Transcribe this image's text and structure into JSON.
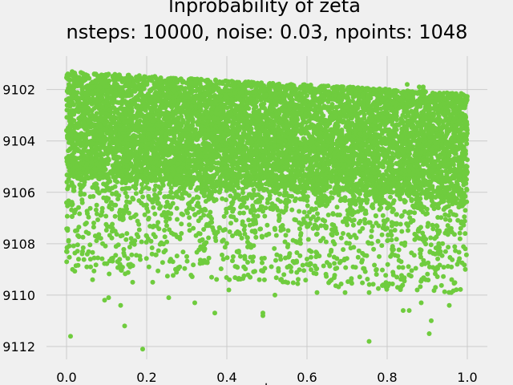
{
  "chart_data": {
    "type": "scatter",
    "title": "lnprobability of zeta",
    "subtitle": "nsteps: 10000, noise: 0.03, npoints: 1048",
    "xlabel": "t",
    "ylabel": "",
    "xlim": [
      -0.05,
      1.05
    ],
    "ylim": [
      -9112.5,
      -9100.7
    ],
    "xticks": [
      0.0,
      0.2,
      0.4,
      0.6,
      0.8,
      1.0
    ],
    "xtick_labels": [
      "0.0",
      "0.2",
      "0.4",
      "0.6",
      "0.8",
      "1.0"
    ],
    "yticks": [
      -9102,
      -9104,
      -9106,
      -9108,
      -9110,
      -9112
    ],
    "ytick_labels": [
      "9102",
      "9104",
      "9106",
      "9108",
      "9110",
      "9112"
    ],
    "grid": true,
    "point_color": "#6fcc3e",
    "background": "#f0f0f0",
    "series": [
      {
        "points": [
          [
            0.01,
            -9111.6
          ],
          [
            0.19,
            -9112.1
          ],
          [
            0.145,
            -9111.2
          ],
          [
            0.755,
            -9111.8
          ],
          [
            0.905,
            -9111.5
          ],
          [
            0.91,
            -9111.0
          ],
          [
            0.49,
            -9110.7
          ],
          [
            0.49,
            -9110.8
          ],
          [
            0.37,
            -9110.7
          ],
          [
            0.32,
            -9110.3
          ],
          [
            0.095,
            -9110.2
          ],
          [
            0.105,
            -9110.1
          ],
          [
            0.135,
            -9110.4
          ],
          [
            0.255,
            -9110.1
          ],
          [
            0.52,
            -9110.0
          ],
          [
            0.625,
            -9109.9
          ],
          [
            0.695,
            -9109.9
          ],
          [
            0.755,
            -9109.9
          ],
          [
            0.84,
            -9110.6
          ],
          [
            0.855,
            -9110.6
          ],
          [
            0.885,
            -9110.3
          ],
          [
            0.955,
            -9110.4
          ],
          [
            0.96,
            -9109.9
          ],
          [
            0.875,
            -9109.8
          ],
          [
            0.79,
            -9109.6
          ],
          [
            0.405,
            -9109.8
          ],
          [
            0.065,
            -9109.4
          ],
          [
            0.165,
            -9109.5
          ],
          [
            0.215,
            -9109.5
          ],
          [
            0.015,
            -9109.0
          ],
          [
            0.03,
            -9108.6
          ],
          [
            0.06,
            -9108.9
          ],
          [
            0.04,
            -9108.3
          ],
          [
            0.09,
            -9108.0
          ],
          [
            0.16,
            -9108.8
          ],
          [
            0.26,
            -9108.6
          ],
          [
            0.3,
            -9108.5
          ],
          [
            0.345,
            -9108.2
          ],
          [
            0.425,
            -9108.9
          ],
          [
            0.555,
            -9108.5
          ],
          [
            0.6,
            -9108.8
          ],
          [
            0.66,
            -9108.3
          ],
          [
            0.715,
            -9108.9
          ],
          [
            0.78,
            -9108.5
          ],
          [
            0.835,
            -9108.7
          ],
          [
            0.92,
            -9108.4
          ],
          [
            0.975,
            -9108.8
          ],
          [
            0.995,
            -9108.2
          ],
          [
            0.0,
            -9108.3
          ],
          [
            0.005,
            -9107.9
          ],
          [
            0.055,
            -9107.6
          ],
          [
            0.115,
            -9107.4
          ],
          [
            0.2,
            -9107.7
          ],
          [
            0.25,
            -9107.3
          ],
          [
            0.33,
            -9107.6
          ],
          [
            0.41,
            -9107.2
          ],
          [
            0.47,
            -9107.5
          ],
          [
            0.53,
            -9107.1
          ],
          [
            0.585,
            -9107.6
          ],
          [
            0.635,
            -9107.3
          ],
          [
            0.69,
            -9107.6
          ],
          [
            0.745,
            -9107.2
          ],
          [
            0.8,
            -9107.4
          ],
          [
            0.865,
            -9107.1
          ],
          [
            0.93,
            -9107.5
          ],
          [
            0.985,
            -9107.2
          ],
          [
            0.0,
            -9106.4
          ],
          [
            0.02,
            -9106.8
          ],
          [
            0.035,
            -9106.0
          ],
          [
            0.045,
            -9105.6
          ],
          [
            0.01,
            -9105.3
          ],
          [
            0.025,
            -9105.0
          ],
          [
            0.005,
            -9104.6
          ],
          [
            0.015,
            -9104.2
          ],
          [
            0.002,
            -9103.8
          ],
          [
            0.008,
            -9103.4
          ],
          [
            0.012,
            -9103.0
          ],
          [
            0.004,
            -9102.6
          ],
          [
            0.018,
            -9102.2
          ],
          [
            0.006,
            -9101.8
          ],
          [
            0.003,
            -9101.4
          ],
          [
            0.014,
            -9101.3
          ],
          [
            0.995,
            -9106.7
          ],
          [
            0.99,
            -9106.3
          ],
          [
            0.985,
            -9105.9
          ],
          [
            0.998,
            -9105.5
          ],
          [
            0.992,
            -9105.0
          ],
          [
            0.996,
            -9104.5
          ],
          [
            0.988,
            -9104.0
          ],
          [
            0.999,
            -9103.5
          ],
          [
            0.994,
            -9103.0
          ],
          [
            0.997,
            -9102.5
          ],
          [
            0.85,
            -9101.8
          ],
          [
            0.89,
            -9102.0
          ],
          [
            0.88,
            -9101.9
          ],
          [
            0.89,
            -9101.9
          ]
        ]
      }
    ]
  }
}
